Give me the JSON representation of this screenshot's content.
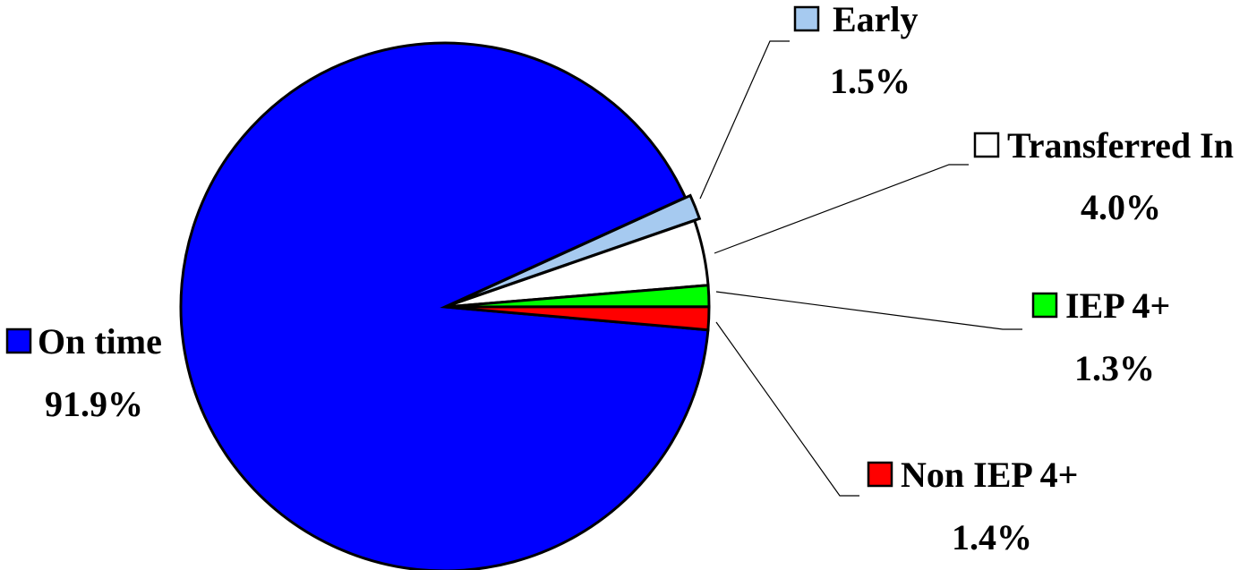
{
  "chart_data": {
    "type": "pie",
    "title": "",
    "slices": [
      {
        "label": "On time",
        "value": 91.9,
        "display": "91.9%",
        "color": "#0000ff"
      },
      {
        "label": "Early",
        "value": 1.5,
        "display": "1.5%",
        "color": "#a6caf0"
      },
      {
        "label": "Transferred In",
        "value": 4.0,
        "display": "4.0%",
        "color": "#ffffff"
      },
      {
        "label": "IEP 4+",
        "value": 1.3,
        "display": "1.3%",
        "color": "#00ff00"
      },
      {
        "label": "Non IEP 4+",
        "value": 1.4,
        "display": "1.4%",
        "color": "#ff0000"
      }
    ],
    "legend": "none",
    "data_labels": "category-and-percent"
  }
}
